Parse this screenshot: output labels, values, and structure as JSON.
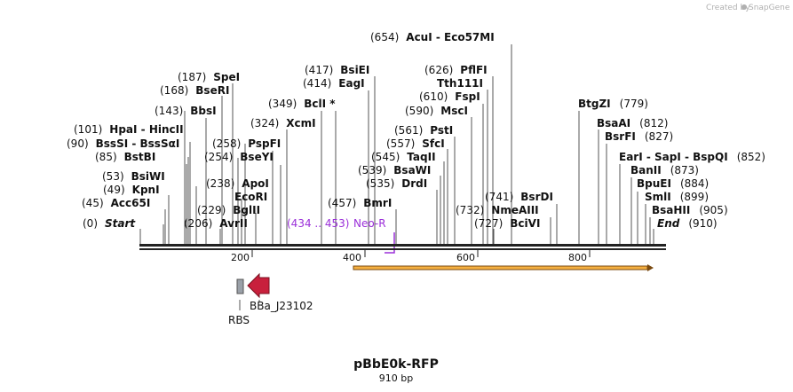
{
  "credit": {
    "text": "Created by",
    "brand": "SnapGene"
  },
  "plasmid": {
    "name": "pBbE0k-RFP",
    "length_label": "910 bp",
    "length": 910
  },
  "axis": {
    "ticks": [
      200,
      400,
      600,
      800
    ]
  },
  "sites": [
    {
      "pos": "(654)",
      "name": "AcuI  - Eco57MI"
    },
    {
      "pos": "(626)",
      "name": "PflFI"
    },
    {
      "pos": "",
      "name": "Tth111I"
    },
    {
      "pos": "(610)",
      "name": "FspI"
    },
    {
      "pos": "(590)",
      "name": "MscI"
    },
    {
      "pos": "(561)",
      "name": "PstI"
    },
    {
      "pos": "(557)",
      "name": "SfcI"
    },
    {
      "pos": "(545)",
      "name": "TaqII"
    },
    {
      "pos": "(539)",
      "name": "BsaWI"
    },
    {
      "pos": "(535)",
      "name": "DrdI"
    },
    {
      "pos": "(417)",
      "name": "BsiEI"
    },
    {
      "pos": "(414)",
      "name": "EagI"
    },
    {
      "pos": "(349)",
      "name": "BclI *"
    },
    {
      "pos": "(324)",
      "name": "XcmI"
    },
    {
      "pos": "(457)",
      "name": "BmrI"
    },
    {
      "pos": "(187)",
      "name": "SpeI"
    },
    {
      "pos": "(168)",
      "name": "BseRI"
    },
    {
      "pos": "(143)",
      "name": "BbsI"
    },
    {
      "pos": "(258)",
      "name": "PspFI"
    },
    {
      "pos": "(254)",
      "name": "BseYI"
    },
    {
      "pos": "(238)",
      "name": "ApoI"
    },
    {
      "pos": "",
      "name": "EcoRI"
    },
    {
      "pos": "(229)",
      "name": "BglII"
    },
    {
      "pos": "(206)",
      "name": "AvrII"
    },
    {
      "pos": "(101)",
      "name": "HpaI  - HincII"
    },
    {
      "pos": "(90)",
      "name": "BssSI  - BssSαI"
    },
    {
      "pos": "(85)",
      "name": "BstBI"
    },
    {
      "pos": "(53)",
      "name": "BsiWI"
    },
    {
      "pos": "(49)",
      "name": "KpnI"
    },
    {
      "pos": "(45)",
      "name": "Acc65I"
    },
    {
      "pos": "(0)",
      "name": "Start"
    },
    {
      "pos": "(779)",
      "name": "BtgZI"
    },
    {
      "pos": "(812)",
      "name": "BsaAI"
    },
    {
      "pos": "(827)",
      "name": "BsrFI"
    },
    {
      "pos": "(852)",
      "name": "EarI  - SapI  - BspQI"
    },
    {
      "pos": "(873)",
      "name": "BanII"
    },
    {
      "pos": "(884)",
      "name": "BpuEI"
    },
    {
      "pos": "(899)",
      "name": "SmlI"
    },
    {
      "pos": "(905)",
      "name": "BsaHII"
    },
    {
      "pos": "(910)",
      "name": "End"
    },
    {
      "pos": "(741)",
      "name": "BsrDI"
    },
    {
      "pos": "(732)",
      "name": "NmeAIII"
    },
    {
      "pos": "(727)",
      "name": "BciVI"
    }
  ],
  "primer": {
    "range": "(434 .. 453)",
    "name": "Neo-R"
  },
  "features": {
    "rbs": "RBS",
    "promoter": "BBa_J23102"
  },
  "colors": {
    "backbone": "#222222",
    "orf_fill": "#f5b041",
    "orf_edge": "#7a4a10",
    "promoter": "#c8203c",
    "rbs": "#9aa0a8",
    "primer": "#9b30d9"
  }
}
